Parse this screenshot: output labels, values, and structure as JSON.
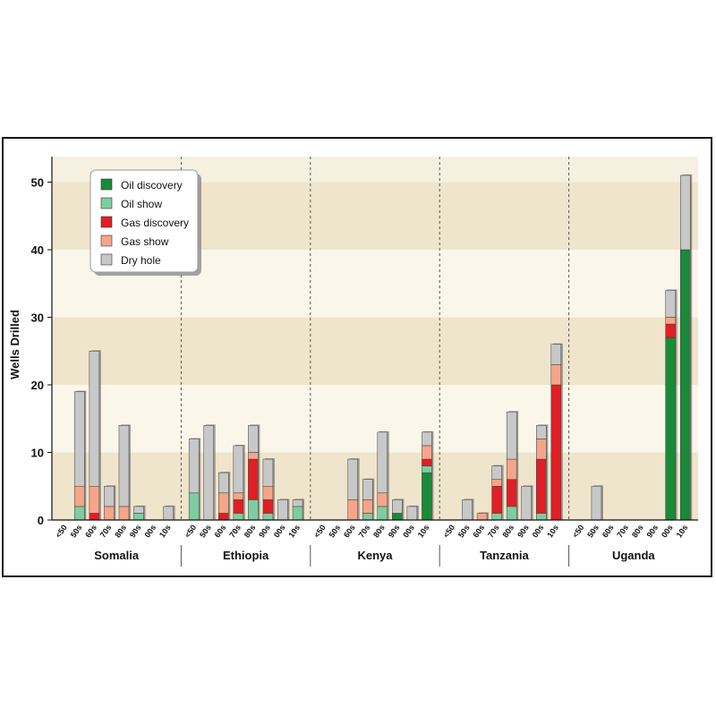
{
  "chart_data": {
    "type": "bar",
    "stacked": true,
    "ylabel": "Wells Drilled",
    "ylim": [
      0,
      53
    ],
    "yticks": [
      0,
      10,
      20,
      30,
      40,
      50
    ],
    "legend_position": "top-left",
    "categories": [
      "<50",
      "50s",
      "60s",
      "70s",
      "80s",
      "90s",
      "00s",
      "10s"
    ],
    "groups": [
      "Somalia",
      "Ethiopia",
      "Kenya",
      "Tanzania",
      "Uganda"
    ],
    "series": [
      {
        "name": "Oil discovery",
        "color": "#1a8a3a",
        "values": [
          [
            0,
            0,
            0,
            0,
            0,
            0,
            0,
            0
          ],
          [
            0,
            0,
            0,
            0,
            0,
            0,
            0,
            0
          ],
          [
            0,
            0,
            0,
            0,
            0,
            1,
            0,
            7
          ],
          [
            0,
            0,
            0,
            0,
            0,
            0,
            0,
            0
          ],
          [
            0,
            0,
            0,
            0,
            0,
            0,
            27,
            40
          ]
        ]
      },
      {
        "name": "Oil show",
        "color": "#7ecda0",
        "values": [
          [
            0,
            2,
            0,
            0,
            0,
            1,
            0,
            0
          ],
          [
            4,
            0,
            0,
            1,
            3,
            1,
            0,
            2
          ],
          [
            0,
            0,
            0,
            1,
            2,
            0,
            0,
            1
          ],
          [
            0,
            0,
            0,
            1,
            2,
            0,
            1,
            0
          ],
          [
            0,
            0,
            0,
            0,
            0,
            0,
            0,
            0
          ]
        ]
      },
      {
        "name": "Gas discovery",
        "color": "#e01f26",
        "values": [
          [
            0,
            0,
            1,
            0,
            0,
            0,
            0,
            0
          ],
          [
            0,
            0,
            1,
            2,
            6,
            2,
            0,
            0
          ],
          [
            0,
            0,
            0,
            0,
            0,
            0,
            0,
            1
          ],
          [
            0,
            0,
            0,
            4,
            4,
            0,
            8,
            20
          ],
          [
            0,
            0,
            0,
            0,
            0,
            0,
            2,
            0
          ]
        ]
      },
      {
        "name": "Gas show",
        "color": "#f6a58a",
        "values": [
          [
            0,
            3,
            4,
            2,
            2,
            0,
            0,
            0
          ],
          [
            0,
            0,
            3,
            1,
            1,
            2,
            0,
            0
          ],
          [
            0,
            0,
            3,
            2,
            2,
            0,
            0,
            2
          ],
          [
            0,
            0,
            1,
            1,
            3,
            0,
            3,
            3
          ],
          [
            0,
            0,
            0,
            0,
            0,
            0,
            1,
            0
          ]
        ]
      },
      {
        "name": "Dry hole",
        "color": "#c8c8c8",
        "values": [
          [
            0,
            14,
            20,
            3,
            12,
            1,
            0,
            2
          ],
          [
            8,
            14,
            3,
            7,
            4,
            4,
            3,
            1
          ],
          [
            0,
            0,
            6,
            3,
            9,
            2,
            2,
            2
          ],
          [
            0,
            3,
            0,
            2,
            7,
            5,
            2,
            3
          ],
          [
            0,
            5,
            0,
            0,
            0,
            0,
            4,
            11
          ]
        ]
      }
    ]
  }
}
